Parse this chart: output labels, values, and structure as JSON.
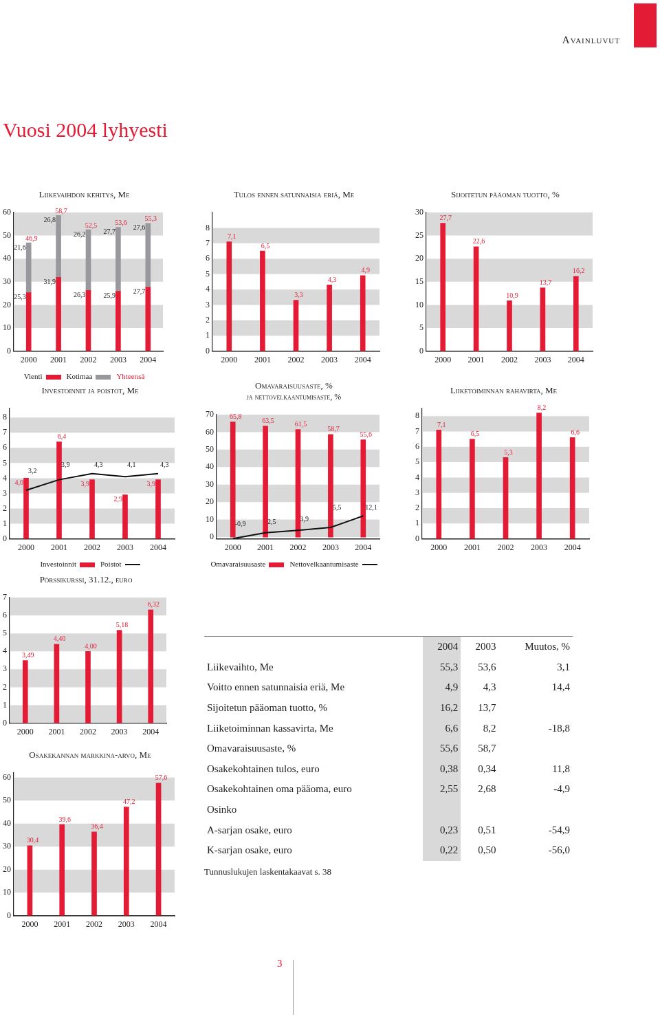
{
  "chart_data": [
    {
      "type": "other",
      "title": "Vuosi 2004 lyhyesti",
      "annotations": [
        "Avainluvut",
        "3"
      ]
    },
    {
      "type": "bar",
      "title": "Liikevaihdon kehitys, Me",
      "categories": [
        "2000",
        "2001",
        "2002",
        "2003",
        "2004"
      ],
      "stacked": true,
      "ylim": [
        0,
        60
      ],
      "yticks": [
        0,
        10,
        20,
        30,
        40,
        50,
        60
      ],
      "bands": [
        {
          "axis": "y",
          "from": 50,
          "to": 60,
          "color": "#d9d9da"
        },
        {
          "axis": "y",
          "from": 30,
          "to": 40,
          "color": "#d9d9da"
        },
        {
          "axis": "y",
          "from": 10,
          "to": 20,
          "color": "#d9d9da"
        }
      ],
      "legend": "bottom",
      "series": [
        {
          "name": "Vienti",
          "color": "#e31b35",
          "values": [
            25.3,
            31.9,
            26.3,
            25.9,
            27.7
          ],
          "value_labels": [
            "25,3",
            "31,9",
            "26,3",
            "25,9",
            "27,7"
          ]
        },
        {
          "name": "Kotimaa",
          "color": "#99989c",
          "values": [
            21.6,
            26.8,
            26.2,
            27.7,
            27.6
          ],
          "value_labels": [
            "21,6",
            "26,8",
            "26,2",
            "27,7",
            "27,6"
          ]
        }
      ],
      "totals": [
        "46,9",
        "58,7",
        "52,5",
        "53,6",
        "55,3"
      ],
      "annotations": [
        "Yhteensä"
      ]
    },
    {
      "type": "bar",
      "title": "Tulos ennen satunnaisia eriä, Me",
      "categories": [
        "2000",
        "2001",
        "2002",
        "2003",
        "2004"
      ],
      "ylim": [
        0,
        9
      ],
      "yticks": [
        0,
        1,
        2,
        3,
        4,
        5,
        6,
        7,
        8
      ],
      "bands": [
        {
          "axis": "y",
          "from": 7,
          "to": 8,
          "color": "#d9d9da"
        },
        {
          "axis": "y",
          "from": 5,
          "to": 6,
          "color": "#d9d9da"
        },
        {
          "axis": "y",
          "from": 3,
          "to": 4,
          "color": "#d9d9da"
        },
        {
          "axis": "y",
          "from": 1,
          "to": 2,
          "color": "#d9d9da"
        }
      ],
      "series": [
        {
          "color": "#e31b35",
          "values": [
            7.1,
            6.5,
            3.3,
            4.3,
            4.9
          ],
          "value_labels": [
            "7,1",
            "6,5",
            "3,3",
            "4,3",
            "4,9"
          ]
        }
      ]
    },
    {
      "type": "bar",
      "title": "Sijoitetun pääoman tuotto, %",
      "categories": [
        "2000",
        "2001",
        "2002",
        "2003",
        "2004"
      ],
      "ylim": [
        0,
        30
      ],
      "yticks": [
        0,
        5,
        10,
        15,
        20,
        25,
        30
      ],
      "bands": [
        {
          "axis": "y",
          "from": 25,
          "to": 30,
          "color": "#d9d9da"
        },
        {
          "axis": "y",
          "from": 15,
          "to": 20,
          "color": "#d9d9da"
        },
        {
          "axis": "y",
          "from": 5,
          "to": 10,
          "color": "#d9d9da"
        }
      ],
      "series": [
        {
          "color": "#e31b35",
          "values": [
            27.7,
            22.6,
            10.9,
            13.7,
            16.2
          ],
          "value_labels": [
            "27,7",
            "22,6",
            "10,9",
            "13,7",
            "16,2"
          ]
        }
      ]
    },
    {
      "type": "bar",
      "title": "Investoinnit ja poistot, Me",
      "categories": [
        "2000",
        "2001",
        "2002",
        "2003",
        "2004"
      ],
      "ylim": [
        0,
        8.6
      ],
      "yticks": [
        0,
        1,
        2,
        3,
        4,
        5,
        6,
        7,
        8
      ],
      "bands": [
        {
          "axis": "y",
          "from": 7,
          "to": 8,
          "color": "#d9d9da"
        },
        {
          "axis": "y",
          "from": 5,
          "to": 6,
          "color": "#d9d9da"
        },
        {
          "axis": "y",
          "from": 3,
          "to": 4,
          "color": "#d9d9da"
        },
        {
          "axis": "y",
          "from": 1,
          "to": 2,
          "color": "#d9d9da"
        }
      ],
      "legend": "bottom",
      "marker": "none",
      "series": [
        {
          "name": "Investoinnit",
          "color": "#e31b35",
          "values": [
            4.0,
            6.4,
            3.9,
            2.9,
            3.9
          ],
          "value_labels": [
            "4,0",
            "6,4",
            "3,9",
            "2,9",
            "3,9"
          ]
        },
        {
          "name": "Poistot",
          "type": "line",
          "color": "#111111",
          "values": [
            3.2,
            3.9,
            4.3,
            4.1,
            4.3
          ],
          "value_labels": [
            "3,2",
            "3,9",
            "4,3",
            "4,1",
            "4,3"
          ]
        }
      ]
    },
    {
      "type": "bar",
      "title": "Omavaraisuusaste, %",
      "subtitle": "ja nettovelkaantumisaste, %",
      "categories": [
        "2000",
        "2001",
        "2002",
        "2003",
        "2004"
      ],
      "ylim": [
        -1,
        70
      ],
      "yticks": [
        0,
        10,
        20,
        30,
        40,
        50,
        60,
        70
      ],
      "bands": [
        {
          "axis": "y",
          "from": 60,
          "to": 70,
          "color": "#d9d9da"
        },
        {
          "axis": "y",
          "from": 40,
          "to": 50,
          "color": "#d9d9da"
        },
        {
          "axis": "y",
          "from": 20,
          "to": 30,
          "color": "#d9d9da"
        },
        {
          "axis": "y",
          "from": 0,
          "to": 10,
          "color": "#d9d9da"
        }
      ],
      "legend": "bottom",
      "marker": "none",
      "series": [
        {
          "name": "Omavaraisuusaste",
          "color": "#e31b35",
          "values": [
            65.8,
            63.5,
            61.5,
            58.7,
            55.6
          ],
          "value_labels": [
            "65,8",
            "63,5",
            "61,5",
            "58,7",
            "55,6"
          ]
        },
        {
          "name": "Nettovelkaantumisaste",
          "type": "line",
          "color": "#111111",
          "values": [
            -0.9,
            2.5,
            3.9,
            5.5,
            12.1
          ],
          "value_labels": [
            "-0,9",
            "2,5",
            "3,9",
            "5,5",
            "12,1"
          ]
        }
      ]
    },
    {
      "type": "bar",
      "title": "Liiketoiminnan rahavirta, Me",
      "categories": [
        "2000",
        "2001",
        "2002",
        "2003",
        "2004"
      ],
      "ylim": [
        0,
        8.5
      ],
      "yticks": [
        0,
        1,
        2,
        3,
        4,
        5,
        6,
        7,
        8
      ],
      "bands": [
        {
          "axis": "y",
          "from": 7,
          "to": 8,
          "color": "#d9d9da"
        },
        {
          "axis": "y",
          "from": 5,
          "to": 6,
          "color": "#d9d9da"
        },
        {
          "axis": "y",
          "from": 3,
          "to": 4,
          "color": "#d9d9da"
        },
        {
          "axis": "y",
          "from": 1,
          "to": 2,
          "color": "#d9d9da"
        }
      ],
      "series": [
        {
          "color": "#e31b35",
          "values": [
            7.1,
            6.5,
            5.3,
            8.2,
            6.6
          ],
          "value_labels": [
            "7,1",
            "6,5",
            "5,3",
            "8,2",
            "6,6"
          ]
        }
      ]
    },
    {
      "type": "bar",
      "title": "Pörssikurssi, 31.12., euro",
      "categories": [
        "2000",
        "2001",
        "2002",
        "2003",
        "2004"
      ],
      "ylim": [
        0,
        7
      ],
      "yticks": [
        0,
        1,
        2,
        3,
        4,
        5,
        6,
        7
      ],
      "bands": [
        {
          "axis": "y",
          "from": 6,
          "to": 7,
          "color": "#d9d9da"
        },
        {
          "axis": "y",
          "from": 4,
          "to": 5,
          "color": "#d9d9da"
        },
        {
          "axis": "y",
          "from": 2,
          "to": 3,
          "color": "#d9d9da"
        },
        {
          "axis": "y",
          "from": 0,
          "to": 1,
          "color": "#d9d9da"
        }
      ],
      "series": [
        {
          "color": "#e31b35",
          "values": [
            3.49,
            4.4,
            4.0,
            5.18,
            6.32
          ],
          "value_labels": [
            "3,49",
            "4,40",
            "4,00",
            "5,18",
            "6,32"
          ]
        }
      ]
    },
    {
      "type": "bar",
      "title": "Osakekannan markkina-arvo, Me",
      "categories": [
        "2000",
        "2001",
        "2002",
        "2003",
        "2004"
      ],
      "ylim": [
        0,
        62
      ],
      "yticks": [
        0,
        10,
        20,
        30,
        40,
        50,
        60
      ],
      "bands": [
        {
          "axis": "y",
          "from": 50,
          "to": 60,
          "color": "#d9d9da"
        },
        {
          "axis": "y",
          "from": 30,
          "to": 40,
          "color": "#d9d9da"
        },
        {
          "axis": "y",
          "from": 10,
          "to": 20,
          "color": "#d9d9da"
        }
      ],
      "series": [
        {
          "color": "#e31b35",
          "values": [
            30.4,
            39.6,
            36.4,
            47.2,
            57.6
          ],
          "value_labels": [
            "30,4",
            "39,6",
            "36,4",
            "47,2",
            "57,6"
          ]
        }
      ]
    },
    {
      "type": "other",
      "categories": [
        "Liikevaihto, Me",
        "Voitto ennen satunnaisia eriä, Me",
        "Sijoitetun pääoman tuotto, %",
        "Liiketoiminnan kassavirta, Me",
        "Omavaraisuusaste, %",
        "Osakekohtainen tulos, euro",
        "Osakekohtainen oma pääoma, euro",
        "Osinko",
        "A-sarjan osake, euro",
        "K-sarjan osake, euro"
      ],
      "series": [
        {
          "name": "2004",
          "values": [
            55.3,
            4.9,
            16.2,
            6.6,
            55.6,
            0.38,
            2.55,
            null,
            0.23,
            0.22
          ],
          "value_labels": [
            "55,3",
            "4,9",
            "16,2",
            "6,6",
            "55,6",
            "0,38",
            "2,55",
            null,
            "0,23",
            "0,22"
          ]
        },
        {
          "name": "2003",
          "values": [
            53.6,
            4.3,
            13.7,
            8.2,
            58.7,
            0.34,
            2.68,
            null,
            0.51,
            0.5
          ],
          "value_labels": [
            "53,6",
            "4,3",
            "13,7",
            "8,2",
            "58,7",
            "0,34",
            "2,68",
            null,
            "0,51",
            "0,50"
          ]
        },
        {
          "name": "Muutos, %",
          "values": [
            3.1,
            14.4,
            null,
            -18.8,
            null,
            11.8,
            -4.9,
            null,
            -54.9,
            -56.0
          ],
          "value_labels": [
            "3,1",
            "14,4",
            null,
            "-18,8",
            null,
            "11,8",
            "-4,9",
            null,
            "-54,9",
            "-56,0"
          ]
        }
      ],
      "annotations": [
        "Tunnuslukujen laskentakaavat s. 38"
      ]
    }
  ]
}
